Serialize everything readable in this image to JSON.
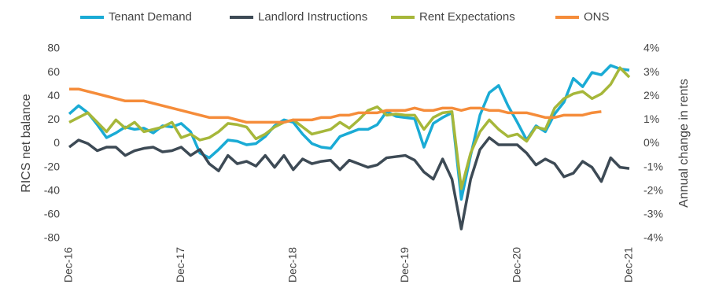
{
  "chart_data": {
    "type": "line",
    "y_label": "RICS net balance",
    "y2_label": "Annual change in rents",
    "categories": [
      "Dec-16",
      null,
      null,
      null,
      null,
      null,
      null,
      null,
      null,
      null,
      null,
      null,
      "Dec-17",
      null,
      null,
      null,
      null,
      null,
      null,
      null,
      null,
      null,
      null,
      null,
      "Dec-18",
      null,
      null,
      null,
      null,
      null,
      null,
      null,
      null,
      null,
      null,
      null,
      "Dec-19",
      null,
      null,
      null,
      null,
      null,
      null,
      null,
      null,
      null,
      null,
      null,
      "Dec-20",
      null,
      null,
      null,
      null,
      null,
      null,
      null,
      null,
      null,
      null,
      null,
      "Dec-21"
    ],
    "series": [
      {
        "name": "Tenant Demand",
        "color": "#1aabd5",
        "values": [
          25,
          32,
          26,
          16,
          5,
          9,
          14,
          12,
          13,
          9,
          15,
          14,
          17,
          10,
          -8,
          -12,
          -5,
          3,
          2,
          -1,
          0,
          6,
          15,
          20,
          18,
          8,
          0,
          -3,
          -4,
          6,
          9,
          12,
          12,
          16,
          27,
          23,
          22,
          21,
          -3,
          17,
          22,
          26,
          -47,
          -10,
          24,
          43,
          49,
          32,
          18,
          3,
          15,
          10,
          25,
          35,
          55,
          48,
          60,
          58,
          66,
          63,
          62
        ]
      },
      {
        "name": "Landlord Instructions",
        "color": "#3d4a55",
        "values": [
          -3,
          3,
          0,
          -6,
          -3,
          -3,
          -10,
          -6,
          -4,
          -3,
          -7,
          -6,
          -3,
          -10,
          -5,
          -17,
          -23,
          -10,
          -17,
          -15,
          -19,
          -10,
          -20,
          -10,
          -22,
          -13,
          -17,
          -15,
          -14,
          -22,
          -14,
          -17,
          -20,
          -18,
          -12,
          -11,
          -10,
          -14,
          -24,
          -30,
          -13,
          -30,
          -72,
          -30,
          -5,
          5,
          -1,
          -1,
          -1,
          -8,
          -18,
          -13,
          -17,
          -28,
          -25,
          -15,
          -20,
          -32,
          -12,
          -20,
          -21
        ]
      },
      {
        "name": "Rent Expectations",
        "color": "#a6b73a",
        "values": [
          18,
          22,
          26,
          18,
          10,
          20,
          13,
          18,
          10,
          12,
          14,
          18,
          5,
          8,
          3,
          5,
          10,
          17,
          16,
          14,
          4,
          8,
          14,
          18,
          20,
          14,
          8,
          10,
          12,
          18,
          13,
          20,
          28,
          31,
          24,
          25,
          24,
          24,
          12,
          22,
          26,
          27,
          -38,
          -8,
          10,
          20,
          12,
          6,
          8,
          2,
          14,
          12,
          30,
          38,
          42,
          44,
          38,
          42,
          50,
          64,
          56
        ]
      },
      {
        "name": "ONS",
        "color": "#f58c3a",
        "axis": "y2",
        "values": [
          2.3,
          2.3,
          2.2,
          2.1,
          2.0,
          1.9,
          1.8,
          1.8,
          1.8,
          1.7,
          1.6,
          1.5,
          1.4,
          1.3,
          1.2,
          1.1,
          1.1,
          1.1,
          1.0,
          0.9,
          0.9,
          0.9,
          0.9,
          0.9,
          1.0,
          1.0,
          1.0,
          1.1,
          1.1,
          1.2,
          1.2,
          1.3,
          1.3,
          1.3,
          1.4,
          1.4,
          1.4,
          1.5,
          1.4,
          1.4,
          1.5,
          1.5,
          1.4,
          1.5,
          1.5,
          1.4,
          1.4,
          1.3,
          1.3,
          1.3,
          1.2,
          1.1,
          1.1,
          1.2,
          1.2,
          1.2,
          1.3,
          1.35,
          null,
          null,
          null
        ]
      }
    ],
    "ylim": [
      -80,
      80
    ],
    "yticks": [
      -80,
      -60,
      -40,
      -20,
      0,
      20,
      40,
      60,
      80
    ],
    "y2lim": [
      -4,
      4
    ],
    "y2ticks": [
      {
        "value": -4,
        "label": "-4%"
      },
      {
        "value": -3,
        "label": "-3%"
      },
      {
        "value": -2,
        "label": "-2%"
      },
      {
        "value": -1,
        "label": "-1%"
      },
      {
        "value": 0,
        "label": "0%"
      },
      {
        "value": 1,
        "label": "1%"
      },
      {
        "value": 2,
        "label": "2%"
      },
      {
        "value": 3,
        "label": "3%"
      },
      {
        "value": 4,
        "label": "4%"
      }
    ],
    "legend": "top"
  }
}
